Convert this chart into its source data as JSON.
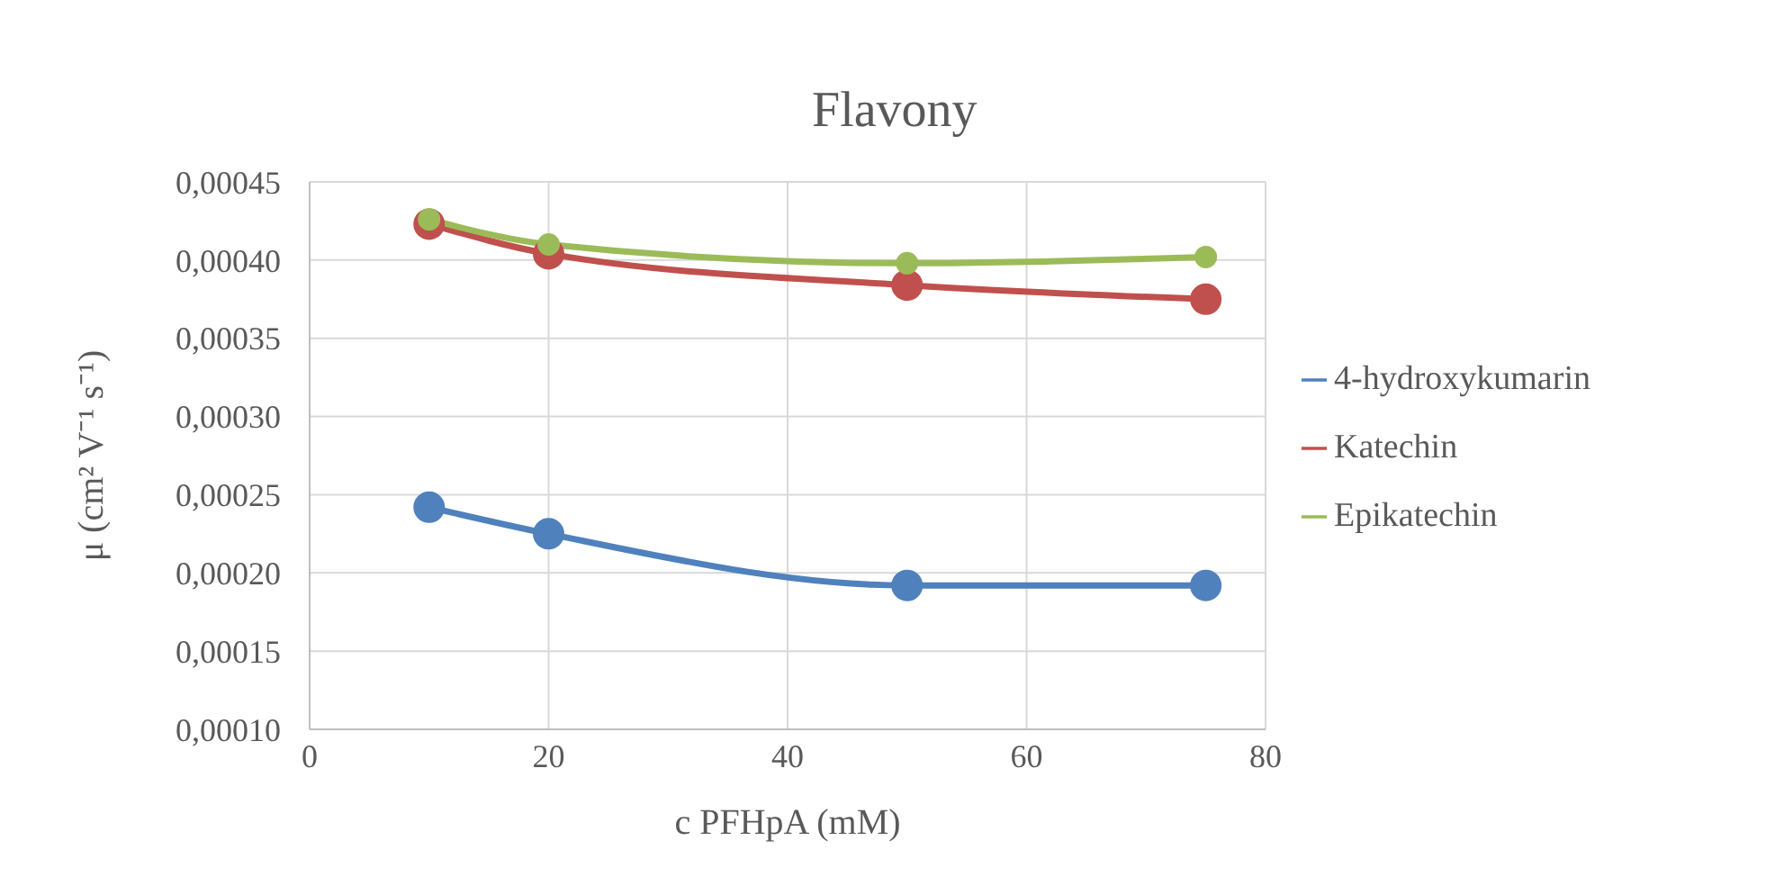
{
  "chart_data": {
    "type": "line",
    "title": "Flavony",
    "xlabel": "c PFHpA (mM)",
    "ylabel": "μ (cm² V⁻¹ s⁻¹)",
    "x": [
      10,
      20,
      50,
      75
    ],
    "series": [
      {
        "name": "4-hydroxykumarin",
        "color": "#4f81bd",
        "values": [
          0.000242,
          0.000225,
          0.000192,
          0.000192
        ]
      },
      {
        "name": "Katechin",
        "color": "#c0504d",
        "values": [
          0.000423,
          0.000404,
          0.000384,
          0.000375
        ]
      },
      {
        "name": "Epikatechin",
        "color": "#9bbb59",
        "values": [
          0.000426,
          0.00041,
          0.000398,
          0.000402
        ]
      }
    ],
    "xlim": [
      0,
      80
    ],
    "xticks": [
      0,
      20,
      40,
      60,
      80
    ],
    "ylim": [
      0.0001,
      0.00045
    ],
    "yticks": [
      {
        "value": 0.0001,
        "label": "0,00010"
      },
      {
        "value": 0.00015,
        "label": "0,00015"
      },
      {
        "value": 0.0002,
        "label": "0,00020"
      },
      {
        "value": 0.00025,
        "label": "0,00025"
      },
      {
        "value": 0.0003,
        "label": "0,00030"
      },
      {
        "value": 0.00035,
        "label": "0,00035"
      },
      {
        "value": 0.0004,
        "label": "0,00040"
      },
      {
        "value": 0.00045,
        "label": "0,00045"
      }
    ],
    "grid": true,
    "legend": "right",
    "marker": "circle",
    "line_style": "solid"
  }
}
